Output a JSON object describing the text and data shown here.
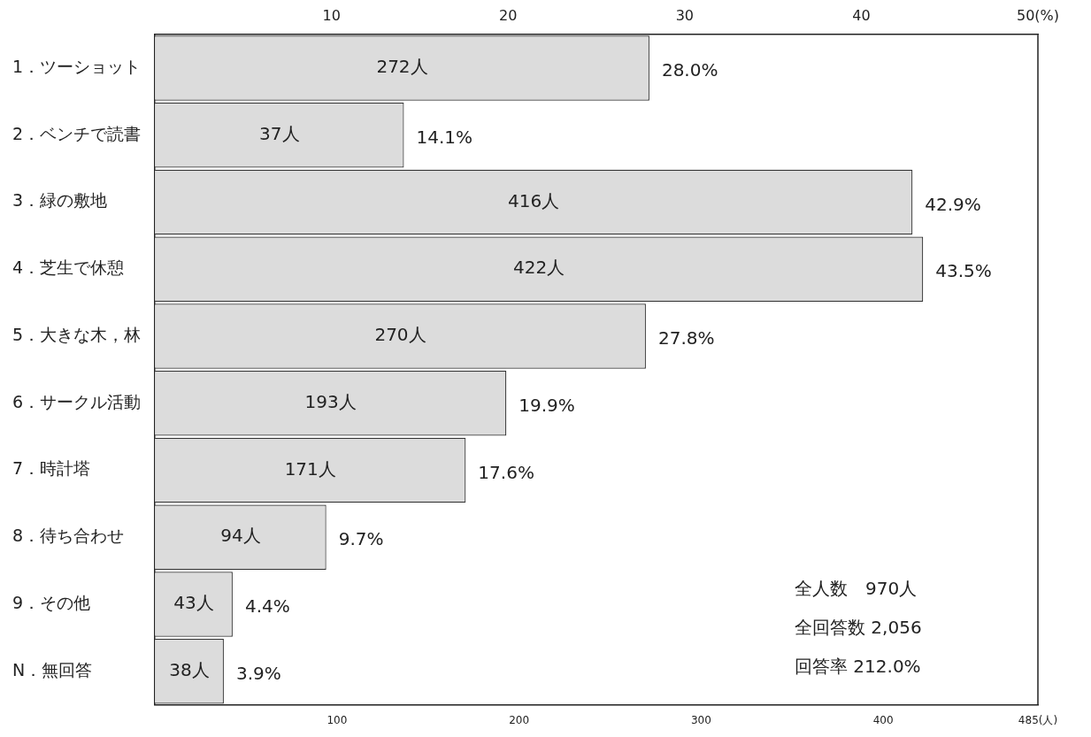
{
  "chart_data": {
    "type": "bar",
    "orientation": "horizontal",
    "categories": [
      "1．ツーショット",
      "2．ベンチで読書",
      "3．緑の敷地",
      "4．芝生で休憩",
      "5．大きな木，林",
      "6．サークル活動",
      "7．時計塔",
      "8．待ち合わせ",
      "9．その他",
      "N．無回答"
    ],
    "series": [
      {
        "axis": "x2",
        "color": "#dcdcdc",
        "values": [
          28.0,
          14.1,
          42.9,
          43.5,
          27.8,
          19.9,
          17.6,
          9.7,
          4.4,
          3.9
        ],
        "value_labels": [
          "28.0%",
          "14.1%",
          "42.9%",
          "43.5%",
          "27.8%",
          "19.9%",
          "17.6%",
          "9.7%",
          "4.4%",
          "3.9%"
        ]
      }
    ],
    "xlim": [
      0,
      485
    ],
    "xticks": [
      100,
      200,
      300,
      400,
      {
        "value": 485,
        "label": "485(人)"
      }
    ],
    "x2lim": [
      0,
      50
    ],
    "x2ticks": [
      10,
      20,
      30,
      40,
      {
        "value": 50,
        "label": "50(%)"
      }
    ],
    "annotations": [
      "272人",
      "37人",
      "416人",
      "422人",
      "270人",
      "193人",
      "171人",
      "94人",
      "43人",
      "38人",
      "全人数　970人",
      "全回答数 2,056",
      "回答率 212.0%"
    ]
  }
}
